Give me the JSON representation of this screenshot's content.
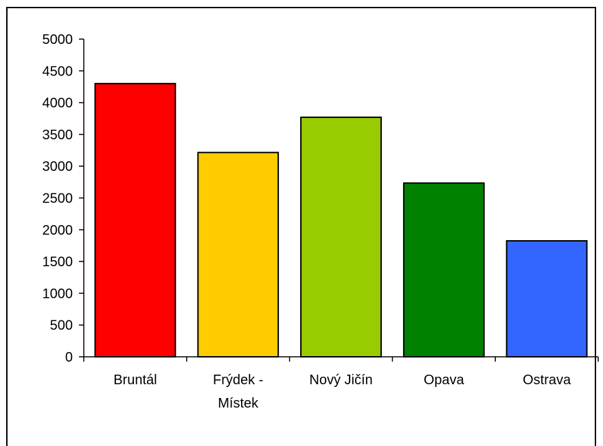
{
  "chart_data": {
    "type": "bar",
    "categories": [
      "Bruntál",
      "Frýdek - Místek",
      "Nový Jičín",
      "Opava",
      "Ostrava"
    ],
    "category_lines": [
      [
        "Bruntál"
      ],
      [
        "Frýdek -",
        "Místek"
      ],
      [
        "Nový Jičín"
      ],
      [
        "Opava"
      ],
      [
        "Ostrava"
      ]
    ],
    "values": [
      4300,
      3215,
      3770,
      2735,
      1825
    ],
    "colors": [
      "#ff0000",
      "#ffcc00",
      "#99cc00",
      "#008000",
      "#3366ff"
    ],
    "ylim": [
      0,
      5000
    ],
    "yticks": [
      0,
      500,
      1000,
      1500,
      2000,
      2500,
      3000,
      3500,
      4000,
      4500,
      5000
    ],
    "title": "",
    "xlabel": "",
    "ylabel": "",
    "grid": false,
    "legend": "none"
  }
}
